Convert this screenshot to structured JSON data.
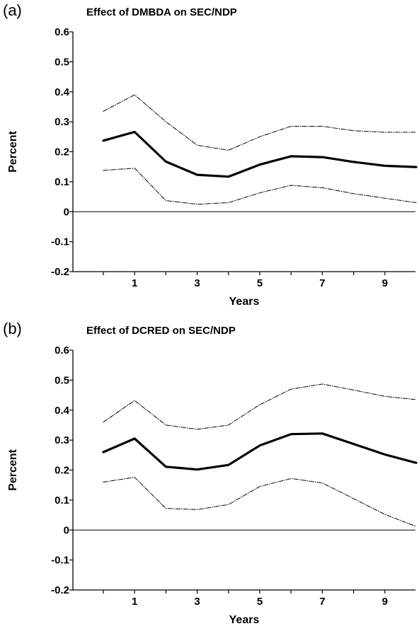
{
  "chart_data": [
    {
      "type": "line",
      "panel_label": "(a)",
      "title": "Effect of DMBDA on SEC/NDP",
      "xlabel": "Years",
      "ylabel": "Percent",
      "ylim": [
        -0.2,
        0.6
      ],
      "xlim": [
        -0.5,
        10
      ],
      "y_ticks": [
        "0.6",
        "0.5",
        "0.4",
        "0.3",
        "0.2",
        "0.1",
        "0",
        "-0.1",
        "-0.2"
      ],
      "x_tick_labels": [
        "1",
        "3",
        "5",
        "7",
        "9"
      ],
      "x": [
        0,
        1,
        2,
        3,
        4,
        5,
        6,
        7,
        8,
        9,
        10
      ],
      "series": [
        {
          "role": "upper",
          "style": "dashed",
          "values": [
            0.335,
            0.39,
            0.3,
            0.222,
            0.205,
            0.25,
            0.285,
            0.285,
            0.27,
            0.265,
            0.265
          ]
        },
        {
          "role": "estimate",
          "style": "solid-thick",
          "values": [
            0.237,
            0.266,
            0.167,
            0.123,
            0.117,
            0.157,
            0.185,
            0.182,
            0.166,
            0.153,
            0.149
          ]
        },
        {
          "role": "lower",
          "style": "dashed",
          "values": [
            0.138,
            0.145,
            0.037,
            0.025,
            0.03,
            0.063,
            0.088,
            0.08,
            0.06,
            0.045,
            0.03
          ]
        }
      ],
      "reference_line": 0
    },
    {
      "type": "line",
      "panel_label": "(b)",
      "title": "Effect of DCRED on SEC/NDP",
      "xlabel": "Years",
      "ylabel": "Percent",
      "ylim": [
        -0.2,
        0.6
      ],
      "xlim": [
        -0.5,
        10
      ],
      "y_ticks": [
        "0.6",
        "0.5",
        "0.4",
        "0.3",
        "0.2",
        "0.1",
        "0",
        "-0.1",
        "-0.2"
      ],
      "x_tick_labels": [
        "1",
        "3",
        "5",
        "7",
        "9"
      ],
      "x": [
        0,
        1,
        2,
        3,
        4,
        5,
        6,
        7,
        8,
        9,
        10
      ],
      "series": [
        {
          "role": "upper",
          "style": "dashed",
          "values": [
            0.36,
            0.432,
            0.35,
            0.336,
            0.35,
            0.418,
            0.47,
            0.487,
            0.467,
            0.446,
            0.435
          ]
        },
        {
          "role": "estimate",
          "style": "solid-thick",
          "values": [
            0.26,
            0.305,
            0.211,
            0.202,
            0.217,
            0.282,
            0.32,
            0.322,
            0.287,
            0.252,
            0.224
          ]
        },
        {
          "role": "lower",
          "style": "dashed",
          "values": [
            0.16,
            0.176,
            0.072,
            0.068,
            0.085,
            0.145,
            0.172,
            0.157,
            0.105,
            0.052,
            0.012
          ]
        }
      ],
      "reference_line": 0
    }
  ]
}
